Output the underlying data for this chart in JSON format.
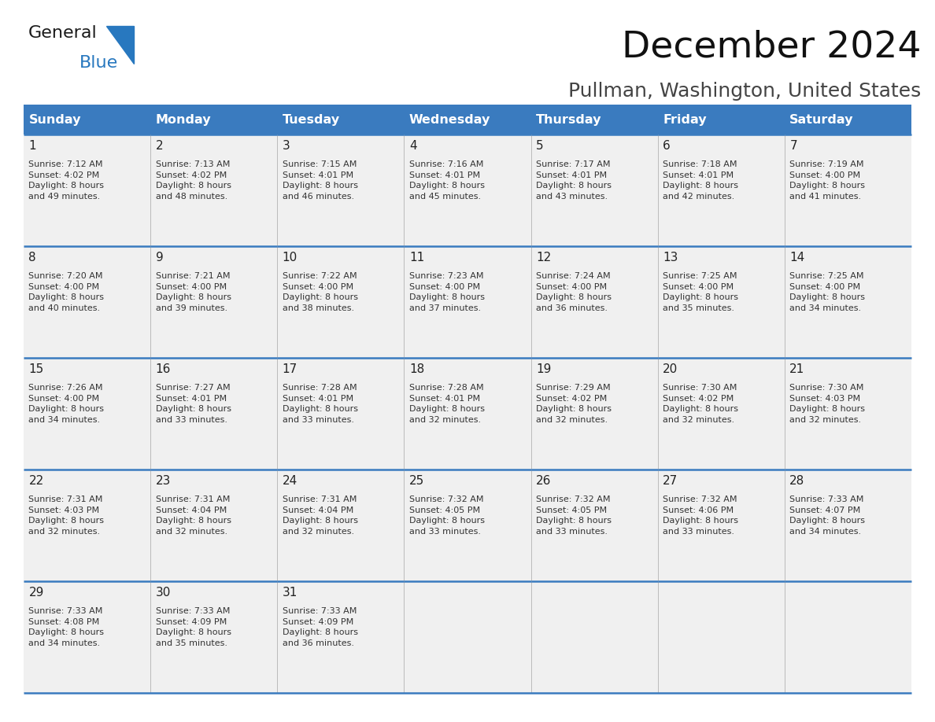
{
  "title": "December 2024",
  "subtitle": "Pullman, Washington, United States",
  "days_of_week": [
    "Sunday",
    "Monday",
    "Tuesday",
    "Wednesday",
    "Thursday",
    "Friday",
    "Saturday"
  ],
  "header_bg": "#3a7bbf",
  "header_text": "#ffffff",
  "cell_bg_odd": "#f0f0f0",
  "cell_bg_even": "#f8f8f8",
  "line_color": "#3a7bbf",
  "sep_color": "#bbbbbb",
  "text_color": "#333333",
  "day_num_color": "#222222",
  "logo_general_color": "#1a1a1a",
  "logo_blue_color": "#2878bf",
  "title_color": "#111111",
  "subtitle_color": "#444444",
  "calendar_data": [
    [
      {
        "day": 1,
        "sunrise": "7:12 AM",
        "sunset": "4:02 PM",
        "dl_hours": 8,
        "dl_mins": 49
      },
      {
        "day": 2,
        "sunrise": "7:13 AM",
        "sunset": "4:02 PM",
        "dl_hours": 8,
        "dl_mins": 48
      },
      {
        "day": 3,
        "sunrise": "7:15 AM",
        "sunset": "4:01 PM",
        "dl_hours": 8,
        "dl_mins": 46
      },
      {
        "day": 4,
        "sunrise": "7:16 AM",
        "sunset": "4:01 PM",
        "dl_hours": 8,
        "dl_mins": 45
      },
      {
        "day": 5,
        "sunrise": "7:17 AM",
        "sunset": "4:01 PM",
        "dl_hours": 8,
        "dl_mins": 43
      },
      {
        "day": 6,
        "sunrise": "7:18 AM",
        "sunset": "4:01 PM",
        "dl_hours": 8,
        "dl_mins": 42
      },
      {
        "day": 7,
        "sunrise": "7:19 AM",
        "sunset": "4:00 PM",
        "dl_hours": 8,
        "dl_mins": 41
      }
    ],
    [
      {
        "day": 8,
        "sunrise": "7:20 AM",
        "sunset": "4:00 PM",
        "dl_hours": 8,
        "dl_mins": 40
      },
      {
        "day": 9,
        "sunrise": "7:21 AM",
        "sunset": "4:00 PM",
        "dl_hours": 8,
        "dl_mins": 39
      },
      {
        "day": 10,
        "sunrise": "7:22 AM",
        "sunset": "4:00 PM",
        "dl_hours": 8,
        "dl_mins": 38
      },
      {
        "day": 11,
        "sunrise": "7:23 AM",
        "sunset": "4:00 PM",
        "dl_hours": 8,
        "dl_mins": 37
      },
      {
        "day": 12,
        "sunrise": "7:24 AM",
        "sunset": "4:00 PM",
        "dl_hours": 8,
        "dl_mins": 36
      },
      {
        "day": 13,
        "sunrise": "7:25 AM",
        "sunset": "4:00 PM",
        "dl_hours": 8,
        "dl_mins": 35
      },
      {
        "day": 14,
        "sunrise": "7:25 AM",
        "sunset": "4:00 PM",
        "dl_hours": 8,
        "dl_mins": 34
      }
    ],
    [
      {
        "day": 15,
        "sunrise": "7:26 AM",
        "sunset": "4:00 PM",
        "dl_hours": 8,
        "dl_mins": 34
      },
      {
        "day": 16,
        "sunrise": "7:27 AM",
        "sunset": "4:01 PM",
        "dl_hours": 8,
        "dl_mins": 33
      },
      {
        "day": 17,
        "sunrise": "7:28 AM",
        "sunset": "4:01 PM",
        "dl_hours": 8,
        "dl_mins": 33
      },
      {
        "day": 18,
        "sunrise": "7:28 AM",
        "sunset": "4:01 PM",
        "dl_hours": 8,
        "dl_mins": 32
      },
      {
        "day": 19,
        "sunrise": "7:29 AM",
        "sunset": "4:02 PM",
        "dl_hours": 8,
        "dl_mins": 32
      },
      {
        "day": 20,
        "sunrise": "7:30 AM",
        "sunset": "4:02 PM",
        "dl_hours": 8,
        "dl_mins": 32
      },
      {
        "day": 21,
        "sunrise": "7:30 AM",
        "sunset": "4:03 PM",
        "dl_hours": 8,
        "dl_mins": 32
      }
    ],
    [
      {
        "day": 22,
        "sunrise": "7:31 AM",
        "sunset": "4:03 PM",
        "dl_hours": 8,
        "dl_mins": 32
      },
      {
        "day": 23,
        "sunrise": "7:31 AM",
        "sunset": "4:04 PM",
        "dl_hours": 8,
        "dl_mins": 32
      },
      {
        "day": 24,
        "sunrise": "7:31 AM",
        "sunset": "4:04 PM",
        "dl_hours": 8,
        "dl_mins": 32
      },
      {
        "day": 25,
        "sunrise": "7:32 AM",
        "sunset": "4:05 PM",
        "dl_hours": 8,
        "dl_mins": 33
      },
      {
        "day": 26,
        "sunrise": "7:32 AM",
        "sunset": "4:05 PM",
        "dl_hours": 8,
        "dl_mins": 33
      },
      {
        "day": 27,
        "sunrise": "7:32 AM",
        "sunset": "4:06 PM",
        "dl_hours": 8,
        "dl_mins": 33
      },
      {
        "day": 28,
        "sunrise": "7:33 AM",
        "sunset": "4:07 PM",
        "dl_hours": 8,
        "dl_mins": 34
      }
    ],
    [
      {
        "day": 29,
        "sunrise": "7:33 AM",
        "sunset": "4:08 PM",
        "dl_hours": 8,
        "dl_mins": 34
      },
      {
        "day": 30,
        "sunrise": "7:33 AM",
        "sunset": "4:09 PM",
        "dl_hours": 8,
        "dl_mins": 35
      },
      {
        "day": 31,
        "sunrise": "7:33 AM",
        "sunset": "4:09 PM",
        "dl_hours": 8,
        "dl_mins": 36
      },
      null,
      null,
      null,
      null
    ]
  ],
  "num_rows": 5,
  "num_cols": 7,
  "figsize": [
    11.88,
    9.18
  ],
  "dpi": 100
}
